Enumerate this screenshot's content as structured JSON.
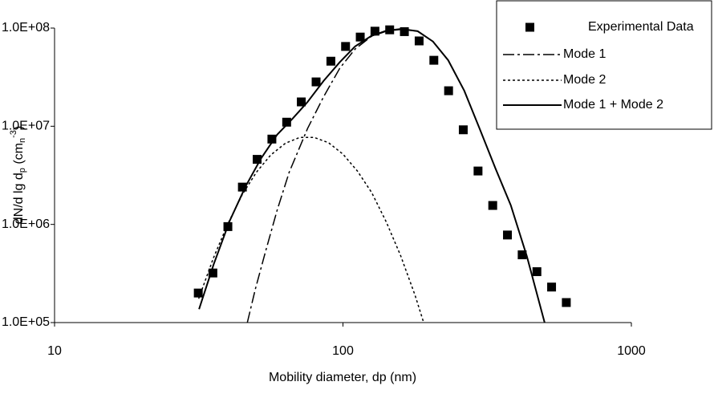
{
  "chart_data": {
    "type": "scatter",
    "xlabel": "Mobility diameter, dp (nm)",
    "ylabel": [
      "dN/d lg d",
      "p",
      " (cm",
      "n",
      "-3",
      ")"
    ],
    "xscale": "log",
    "yscale": "log",
    "xlim": [
      10,
      1000
    ],
    "xticks": [
      10,
      100,
      1000
    ],
    "ylim": [
      100000,
      100000000
    ],
    "yticks": [
      {
        "value": 100000,
        "label": "1.0E+05"
      },
      {
        "value": 1000000,
        "label": "1.0E+06"
      },
      {
        "value": 10000000,
        "label": "1.0E+07"
      },
      {
        "value": 100000000,
        "label": "1.0E+08"
      }
    ],
    "grid": false,
    "legend": "upper right",
    "series": [
      {
        "name": "Experimental Data",
        "kind": "points",
        "marker": "square",
        "color": "#000000",
        "x": [
          31.5,
          35.4,
          39.9,
          44.8,
          50.4,
          56.7,
          63.8,
          71.7,
          80.7,
          90.8,
          102.1,
          114.8,
          129.1,
          145.2,
          163.3,
          183.7,
          206.6,
          232.4,
          261.3,
          294.0,
          330.6,
          371.8,
          418.2,
          470.4,
          528.9,
          594.9
        ],
        "values": [
          200000,
          320000,
          950000,
          2400000,
          4600000,
          7400000,
          11000000,
          17700000,
          28300000,
          46000000,
          65000000,
          81000000,
          93000000,
          96000000,
          92000000,
          74000000,
          47000000,
          23000000,
          9200000,
          3500000,
          1560000,
          780000,
          490000,
          330000,
          230000,
          160000
        ]
      },
      {
        "name": "Mode 1",
        "kind": "line",
        "dash": "dash-dot",
        "color": "#000000",
        "x": [
          46.6,
          49.7,
          53.7,
          59.1,
          65.1,
          75.4,
          85.7,
          97.5,
          110.1,
          125.2,
          141.4,
          159.7,
          181.6,
          205.1,
          231.7,
          263.4,
          297.5,
          338.1,
          382.1,
          434.5,
          500.3
        ],
        "values": [
          100000,
          220000,
          510000,
          1390000,
          3400000,
          9500000,
          20000000,
          39000000,
          61000000,
          82000000,
          93000000,
          97000000,
          93000000,
          73000000,
          47000000,
          23000000,
          9500000,
          3700000,
          1560000,
          470000,
          100000
        ]
      },
      {
        "name": "Mode 2",
        "kind": "line",
        "dash": "dotted",
        "color": "#000000",
        "x": [
          31.6,
          35.5,
          39.8,
          44.7,
          50.1,
          56.2,
          63.1,
          70.8,
          79.4,
          89.1,
          100,
          112.2,
          125.9,
          141.3,
          158.5,
          177.8,
          199.5
        ],
        "values": [
          175000,
          450000,
          1000000,
          2000000,
          3400000,
          5100000,
          6700000,
          7700000,
          7700000,
          6800000,
          5200000,
          3500000,
          2100000,
          1060000,
          480000,
          190000,
          65000
        ]
      },
      {
        "name": "Mode 1 + Mode 2",
        "kind": "line",
        "dash": "solid",
        "color": "#000000",
        "x": [
          31.7,
          35.6,
          40.5,
          46.0,
          52.0,
          59.1,
          66.8,
          75.4,
          85.7,
          97.5,
          110.1,
          125.2,
          141.4,
          159.7,
          181.6,
          205.1,
          231.7,
          263.4,
          297.5,
          338.1,
          382.1,
          434.5,
          500.3
        ],
        "values": [
          137000,
          390000,
          1090000,
          2450000,
          4700000,
          8200000,
          11900000,
          17700000,
          29000000,
          45000000,
          65000000,
          83000000,
          94000000,
          98000000,
          93000000,
          73000000,
          47000000,
          23000000,
          9500000,
          3700000,
          1560000,
          470000,
          100000
        ]
      }
    ]
  }
}
